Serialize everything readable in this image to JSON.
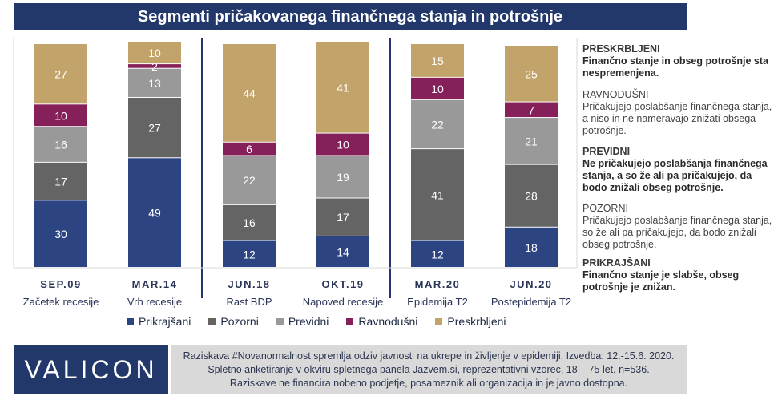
{
  "title": "Segmenti pričakovanega finančnega stanja in potrošnje",
  "chart_data": {
    "type": "bar",
    "stacked": true,
    "categories": [
      "SEP.09",
      "MAR.14",
      "JUN.18",
      "OKT.19",
      "MAR.20",
      "JUN.20"
    ],
    "sublabels": [
      "Začetek recesije",
      "Vrh recesije",
      "Rast BDP",
      "Napoved recesije",
      "Epidemija T2",
      "Postepidemija T2"
    ],
    "series": [
      {
        "name": "Prikrajšani",
        "color": "#2c4482",
        "values": [
          30,
          49,
          12,
          14,
          12,
          18
        ]
      },
      {
        "name": "Pozorni",
        "color": "#646464",
        "values": [
          17,
          27,
          16,
          17,
          41,
          28
        ]
      },
      {
        "name": "Previdni",
        "color": "#999999",
        "values": [
          16,
          13,
          22,
          19,
          22,
          21
        ]
      },
      {
        "name": "Ravnodušni",
        "color": "#86205a",
        "values": [
          10,
          2,
          6,
          10,
          10,
          7
        ]
      },
      {
        "name": "Preskrbljeni",
        "color": "#c2a369",
        "values": [
          27,
          10,
          44,
          41,
          15,
          25
        ]
      }
    ],
    "ylim": [
      0,
      100
    ],
    "xlabel": "",
    "ylabel": "",
    "grid": true,
    "legend_position": "bottom"
  },
  "descriptions": [
    {
      "head": "PRESKRBLJENI",
      "head_bold": true,
      "body": "Finančno stanje in obseg potrošnje sta nespremenjena.",
      "body_bold": true
    },
    {
      "head": "RAVNODUŠNI",
      "head_bold": false,
      "body": "Pričakujejo poslabšanje finančnega stanja, a niso in ne nameravajo znižati obsega potrošnje.",
      "body_bold": false
    },
    {
      "head": "PREVIDNI",
      "head_bold": true,
      "body": "Ne pričakujejo poslabšanja finančnega stanja, a so že ali pa pričakujejo, da bodo znižali obseg potrošnje.",
      "body_bold": true
    },
    {
      "head": "POZORNI",
      "head_bold": false,
      "body": "Pričakujejo poslabšanje finančnega stanja, so že ali pa pričakujejo, da bodo znižali obseg potrošnje.",
      "body_bold": false
    },
    {
      "head": "PRIKRAJŠANI",
      "head_bold": true,
      "body": "Finančno stanje je slabše, obseg potrošnje je znižan.",
      "body_bold": true
    }
  ],
  "logo": "VALICON",
  "footnote": [
    "Raziskava #Novanormalnost spremlja odziv javnosti na ukrepe in življenje v epidemiji. Izvedba: 12.-15.6. 2020.",
    "Spletno anketiranje v okviru spletnega panela Jazvem.si, reprezentativni vzorec, 18 – 75 let, n=536.",
    "Raziskave ne financira nobeno podjetje, posameznik ali organizacija in je javno dostopna."
  ],
  "colors": {
    "accent": "#22376a",
    "divider": "#22376a"
  }
}
